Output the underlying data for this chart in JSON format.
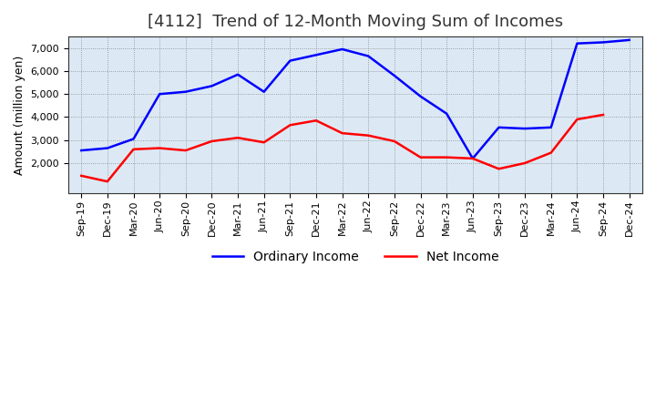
{
  "title": "[4112]  Trend of 12-Month Moving Sum of Incomes",
  "ylabel": "Amount (million yen)",
  "background_color": "#ffffff",
  "plot_bg_color": "#dce9f5",
  "grid_color": "#888888",
  "x_labels": [
    "Sep-19",
    "Dec-19",
    "Mar-20",
    "Jun-20",
    "Sep-20",
    "Dec-20",
    "Mar-21",
    "Jun-21",
    "Sep-21",
    "Dec-21",
    "Mar-22",
    "Jun-22",
    "Sep-22",
    "Dec-22",
    "Mar-23",
    "Jun-23",
    "Sep-23",
    "Dec-23",
    "Mar-24",
    "Jun-24",
    "Sep-24",
    "Dec-24"
  ],
  "ordinary_income": [
    2550,
    2650,
    3050,
    5000,
    5100,
    5350,
    5850,
    5100,
    6450,
    6700,
    6950,
    6650,
    5800,
    4900,
    4150,
    2200,
    3550,
    3500,
    3550,
    7200,
    7250,
    7350
  ],
  "net_income": [
    1450,
    1200,
    2600,
    2650,
    2550,
    2950,
    3100,
    2900,
    3650,
    3850,
    3300,
    3200,
    2950,
    2250,
    2250,
    2200,
    1750,
    2000,
    2450,
    3900,
    4100,
    null
  ],
  "ordinary_color": "#0000ff",
  "net_color": "#ff0000",
  "ylim_min": 700,
  "ylim_max": 7500,
  "yticks": [
    2000,
    3000,
    4000,
    5000,
    6000,
    7000
  ],
  "line_width": 1.8,
  "title_fontsize": 13,
  "tick_fontsize": 8,
  "ylabel_fontsize": 9,
  "legend_labels": [
    "Ordinary Income",
    "Net Income"
  ],
  "legend_fontsize": 10
}
